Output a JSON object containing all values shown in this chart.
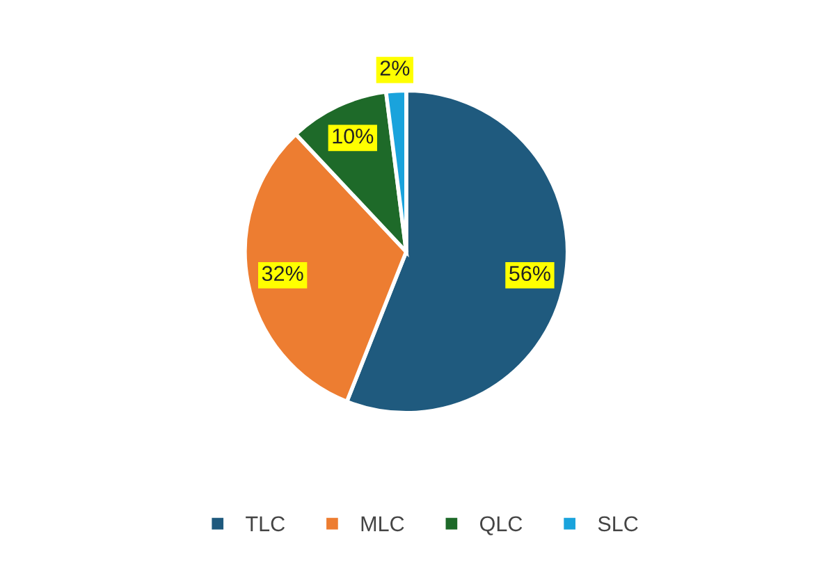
{
  "chart_data": {
    "type": "pie",
    "categories": [
      "TLC",
      "MLC",
      "QLC",
      "SLC"
    ],
    "values": [
      56,
      32,
      10,
      2
    ],
    "colors": [
      "#1f5a7e",
      "#ed7d31",
      "#1e6a29",
      "#1aa3dc"
    ],
    "value_labels": [
      "56%",
      "32%",
      "10%",
      "2%"
    ],
    "legend": "bottom"
  }
}
